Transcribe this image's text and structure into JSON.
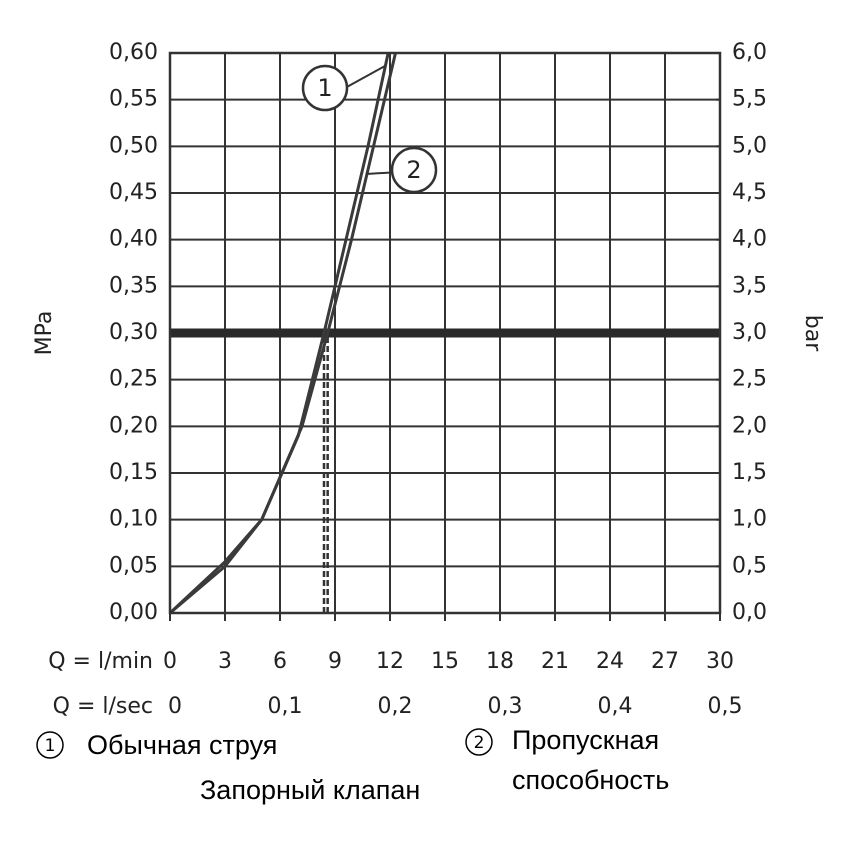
{
  "chart_data": {
    "type": "line",
    "y_label": "MPa",
    "y2_label": "bar",
    "x_label": "Q = l/min",
    "x2_label": "Q = l/sec",
    "xlim": [
      0,
      30
    ],
    "xticks": [
      0,
      3,
      6,
      9,
      12,
      15,
      18,
      21,
      24,
      27,
      30
    ],
    "x2lim": [
      0,
      0.5
    ],
    "x2ticks": [
      0,
      {
        "value": 0.1,
        "label": "0,1"
      },
      {
        "value": 0.2,
        "label": "0,2"
      },
      {
        "value": 0.3,
        "label": "0,3"
      },
      {
        "value": 0.4,
        "label": "0,4"
      },
      {
        "value": 0.5,
        "label": "0,5"
      }
    ],
    "ylim": [
      0,
      0.6
    ],
    "yticks": [
      {
        "value": 0,
        "label": "0,00"
      },
      {
        "value": 0.05,
        "label": "0,05"
      },
      {
        "value": 0.1,
        "label": "0,10"
      },
      {
        "value": 0.15,
        "label": "0,15"
      },
      {
        "value": 0.2,
        "label": "0,20"
      },
      {
        "value": 0.25,
        "label": "0,25"
      },
      {
        "value": 0.3,
        "label": "0,30"
      },
      {
        "value": 0.35,
        "label": "0,35"
      },
      {
        "value": 0.4,
        "label": "0,40"
      },
      {
        "value": 0.45,
        "label": "0,45"
      },
      {
        "value": 0.5,
        "label": "0,50"
      },
      {
        "value": 0.55,
        "label": "0,55"
      },
      {
        "value": 0.6,
        "label": "0,60"
      }
    ],
    "y2lim": [
      0,
      6
    ],
    "y2ticks": [
      {
        "value": 0,
        "label": "0,0"
      },
      {
        "value": 0.5,
        "label": "0,5"
      },
      {
        "value": 1,
        "label": "1,0"
      },
      {
        "value": 1.5,
        "label": "1,5"
      },
      {
        "value": 2,
        "label": "2,0"
      },
      {
        "value": 2.5,
        "label": "2,5"
      },
      {
        "value": 3,
        "label": "3,0"
      },
      {
        "value": 3.5,
        "label": "3,5"
      },
      {
        "value": 4,
        "label": "4,0"
      },
      {
        "value": 4.5,
        "label": "4,5"
      },
      {
        "value": 5,
        "label": "5,0"
      },
      {
        "value": 5.5,
        "label": "5,5"
      },
      {
        "value": 6,
        "label": "6,0"
      }
    ],
    "grid": true,
    "threshold": 0.3,
    "flow_markers": [
      8.4,
      8.6
    ],
    "series": [
      {
        "name": "Обычная струя",
        "label": "1",
        "color": "#3a3a3a",
        "x": [
          0,
          3,
          5,
          7,
          8.4,
          9.6,
          10.8,
          11.9
        ],
        "values": [
          0,
          0.055,
          0.1,
          0.19,
          0.3,
          0.4,
          0.5,
          0.6
        ]
      },
      {
        "name": "Пропускная способность",
        "label": "2",
        "color": "#3a3a3a",
        "x": [
          0,
          3,
          5,
          7.2,
          8.6,
          9.9,
          11.1,
          12.3
        ],
        "values": [
          0,
          0.05,
          0.1,
          0.2,
          0.3,
          0.4,
          0.5,
          0.6
        ]
      }
    ],
    "caption": "Запорный клапан"
  }
}
